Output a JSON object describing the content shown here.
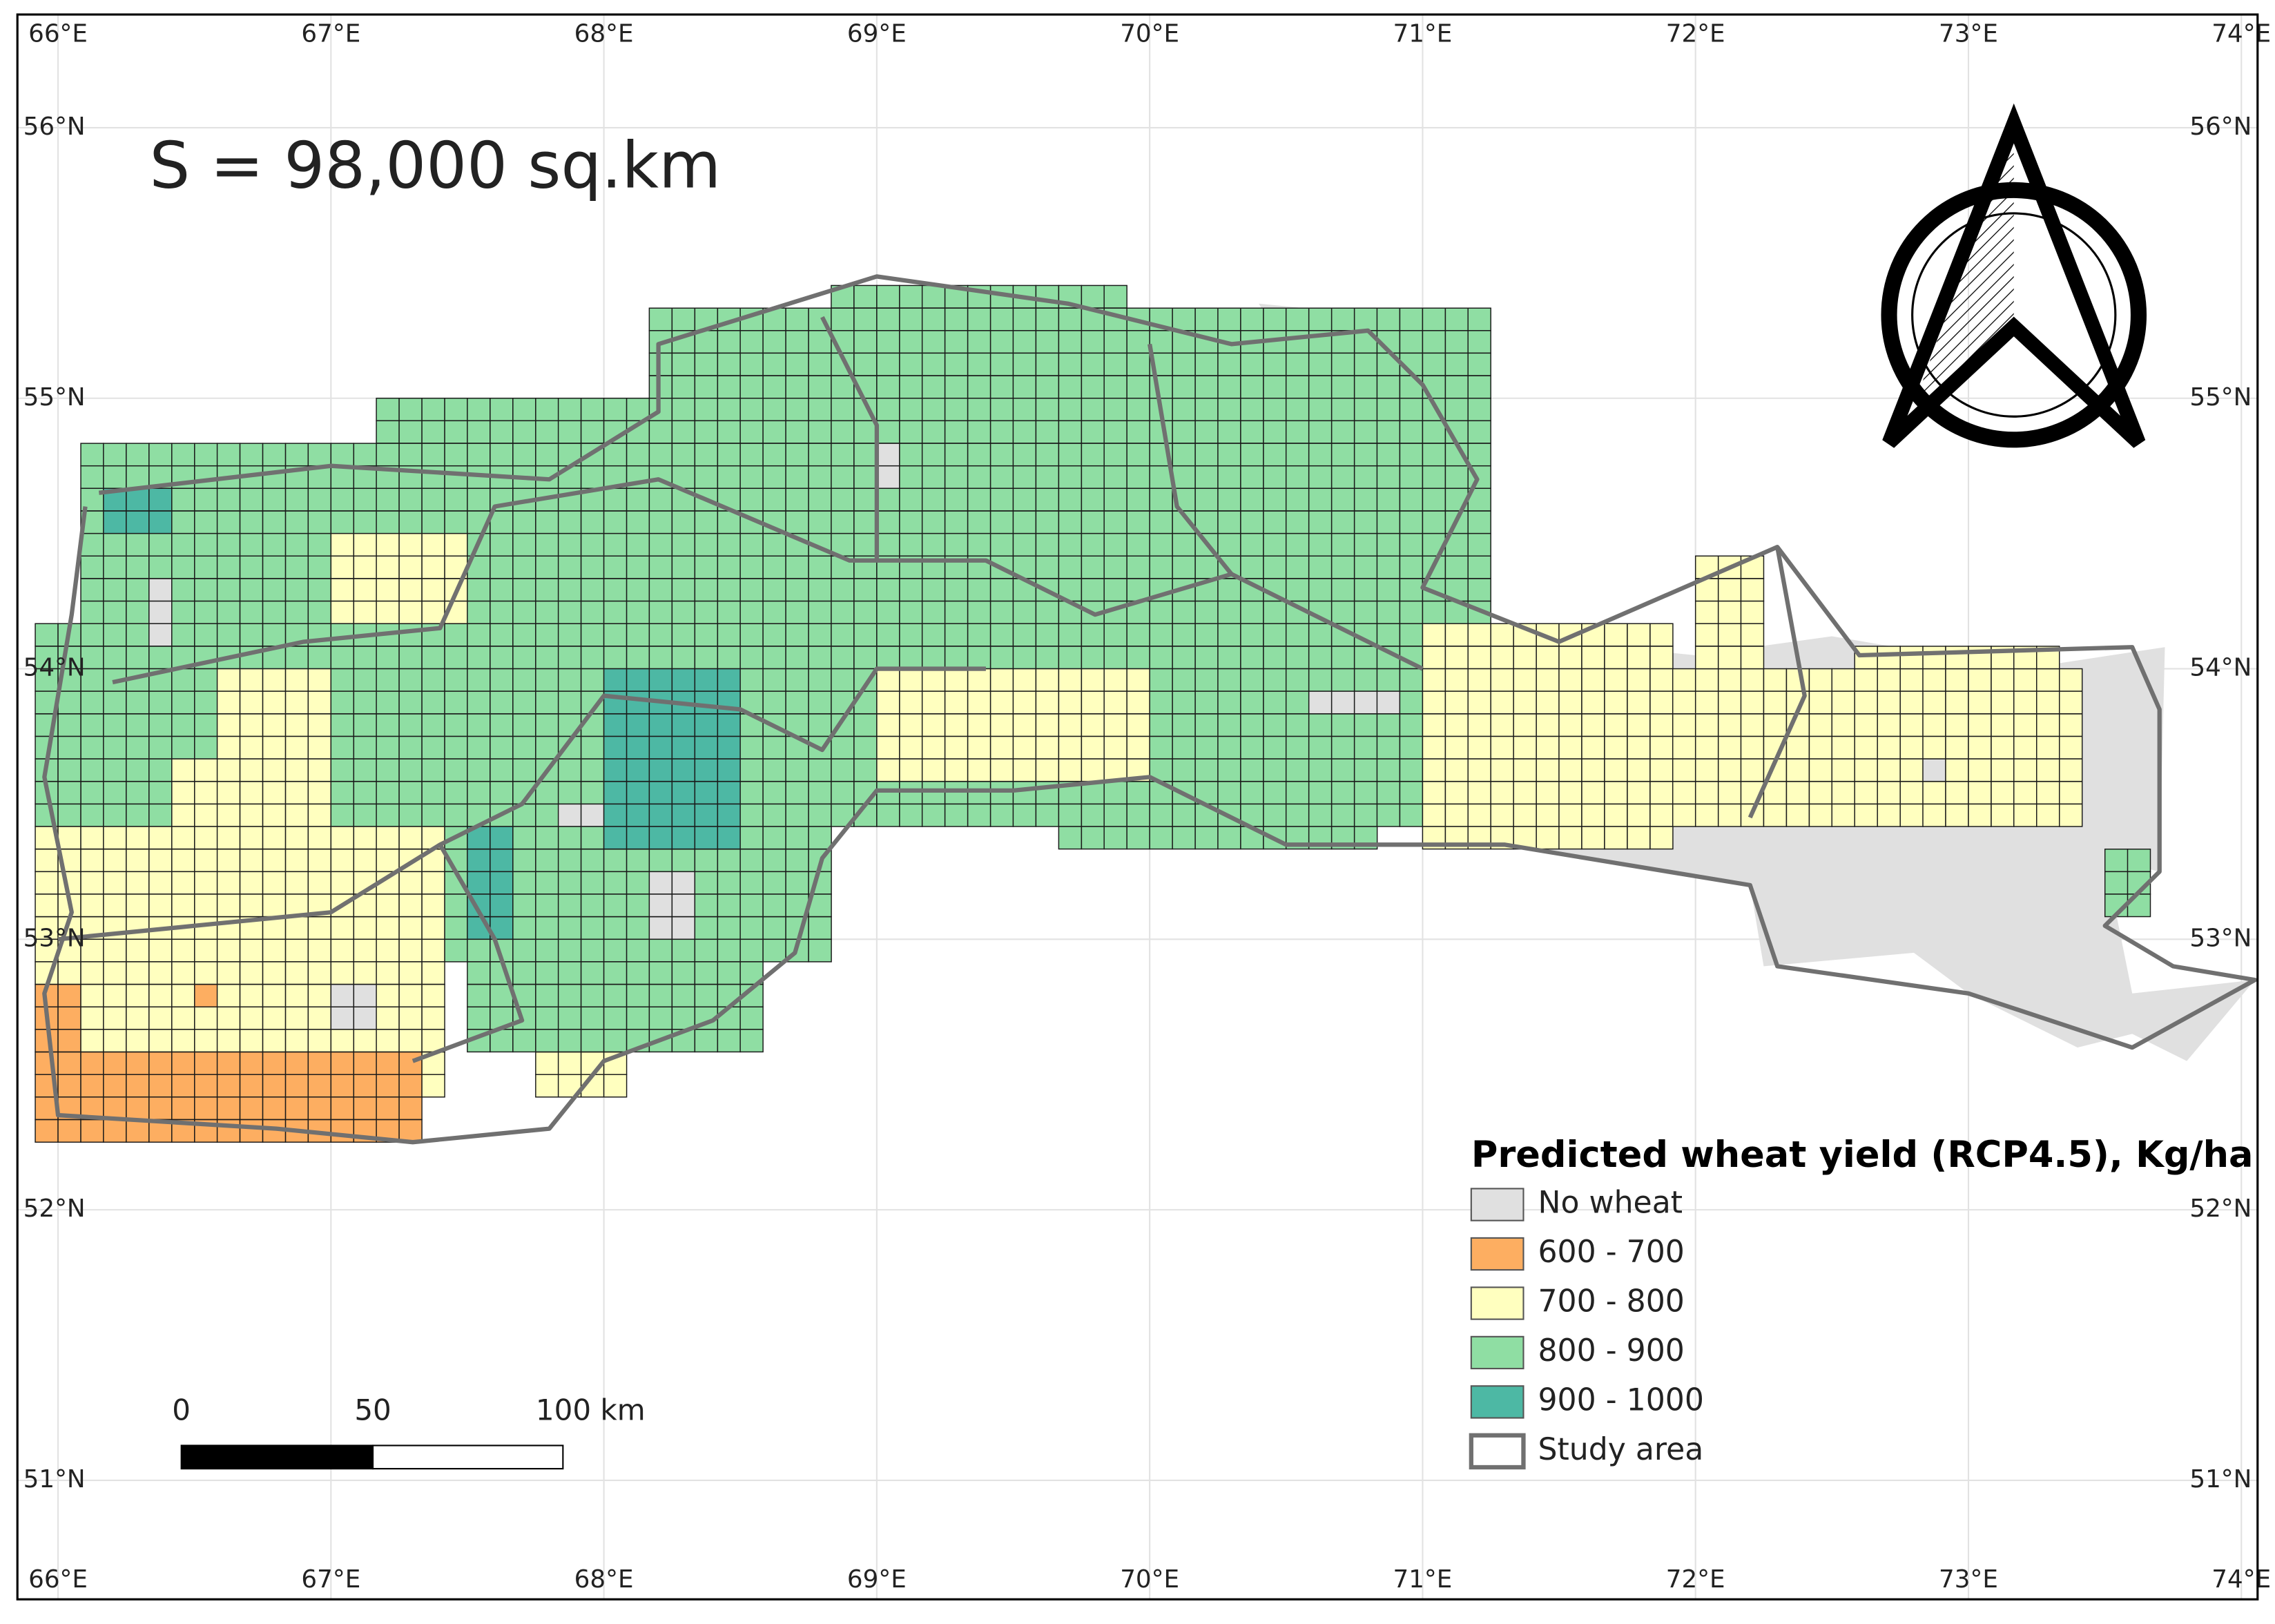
{
  "map": {
    "area_label": "S = 98,000 sq.km",
    "lon_ticks": [
      {
        "value": 66,
        "label": "66°E"
      },
      {
        "value": 67,
        "label": "67°E"
      },
      {
        "value": 68,
        "label": "68°E"
      },
      {
        "value": 69,
        "label": "69°E"
      },
      {
        "value": 70,
        "label": "70°E"
      },
      {
        "value": 71,
        "label": "71°E"
      },
      {
        "value": 72,
        "label": "72°E"
      },
      {
        "value": 73,
        "label": "73°E"
      },
      {
        "value": 74,
        "label": "74°E"
      }
    ],
    "lat_ticks": [
      {
        "value": 56,
        "label": "56°N"
      },
      {
        "value": 55,
        "label": "55°N"
      },
      {
        "value": 54,
        "label": "54°N"
      },
      {
        "value": 53,
        "label": "53°N"
      },
      {
        "value": 52,
        "label": "52°N"
      },
      {
        "value": 51,
        "label": "51°N"
      }
    ],
    "grid": true,
    "legend": {
      "title": "Predicted wheat yield (RCP4.5), Kg/ha",
      "items": [
        {
          "label": "No wheat",
          "color": "#e0e0e0"
        },
        {
          "label": "600 - 700",
          "color": "#fdae61"
        },
        {
          "label": "700 - 800",
          "color": "#ffffbf"
        },
        {
          "label": "800 - 900",
          "color": "#8fdea3"
        },
        {
          "label": "900 - 1000",
          "color": "#4db8a4"
        },
        {
          "label": "Study area",
          "color": "#707070"
        }
      ]
    },
    "scale_bar": {
      "labels": [
        "0",
        "50",
        "100 km"
      ]
    }
  }
}
